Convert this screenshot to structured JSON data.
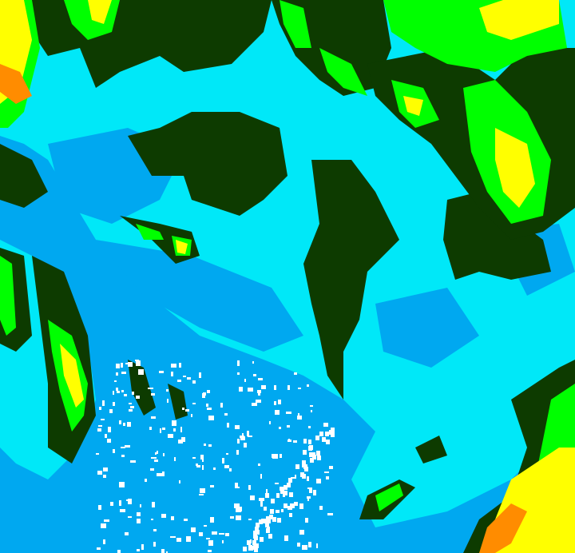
{
  "image": {
    "kind": "false-color satellite/radar field",
    "palette": {
      "background_blue": "#00a8f0",
      "cyan": "#00e8f8",
      "dark_green": "#0d3b00",
      "mid_green": "#1f8f12",
      "bright_green": "#00ff00",
      "yellow": "#ffff00",
      "orange": "#ff8c00",
      "white": "#ffffff"
    }
  }
}
